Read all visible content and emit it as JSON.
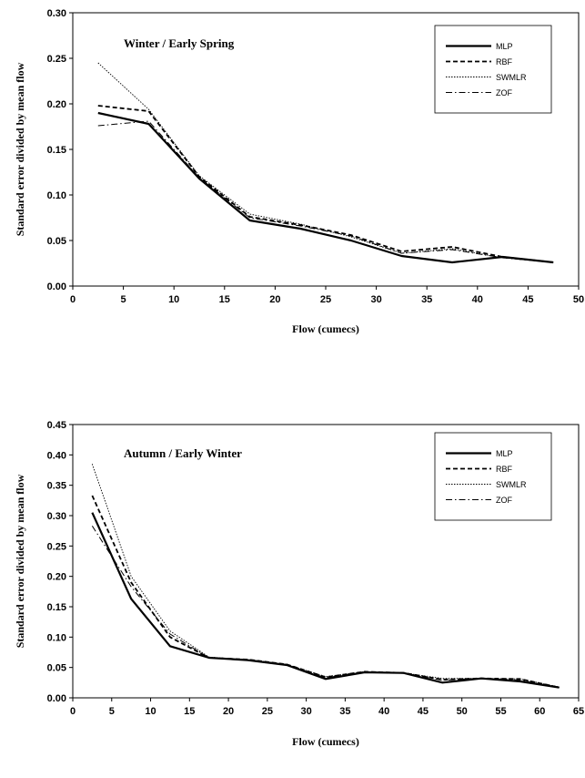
{
  "chart_data": [
    {
      "type": "line",
      "title": "Winter / Early Spring",
      "xlabel": "Flow (cumecs)",
      "ylabel": "Standard error divided by mean flow",
      "xlim": [
        0,
        50
      ],
      "ylim": [
        0,
        0.3
      ],
      "xticks": [
        0,
        5,
        10,
        15,
        20,
        25,
        30,
        35,
        40,
        45,
        50
      ],
      "xtick_labels": [
        "0",
        "5",
        "10",
        "15",
        "20",
        "25",
        "30",
        "35",
        "40",
        "45",
        "50"
      ],
      "yticks": [
        0,
        0.05,
        0.1,
        0.15,
        0.2,
        0.25,
        0.3
      ],
      "ytick_labels": [
        "0.00",
        "0.05",
        "0.10",
        "0.15",
        "0.20",
        "0.25",
        "0.30"
      ],
      "grid": false,
      "legend_position": "top-right",
      "x": [
        2.5,
        7.5,
        12.5,
        17.5,
        22.5,
        27.5,
        32.5,
        37.5,
        42.5,
        47.5
      ],
      "series": [
        {
          "name": "MLP",
          "style": "solid-thick",
          "values": [
            0.19,
            0.178,
            0.118,
            0.072,
            0.063,
            0.05,
            0.033,
            0.026,
            0.032,
            0.026
          ]
        },
        {
          "name": "RBF",
          "style": "dashed",
          "values": [
            0.198,
            0.192,
            0.12,
            0.076,
            0.067,
            0.056,
            0.038,
            0.043,
            0.032,
            0.026
          ]
        },
        {
          "name": "SWMLR",
          "style": "dotted",
          "values": [
            0.245,
            0.194,
            0.121,
            0.079,
            0.068,
            0.054,
            0.036,
            0.041,
            0.031,
            0.026
          ]
        },
        {
          "name": "ZOF",
          "style": "dash-dot",
          "values": [
            0.176,
            0.181,
            0.119,
            0.075,
            0.066,
            0.055,
            0.036,
            0.04,
            0.031,
            0.026
          ]
        }
      ]
    },
    {
      "type": "line",
      "title": "Autumn / Early Winter",
      "xlabel": "Flow (cumecs)",
      "ylabel": "Standard error divided by mean flow",
      "xlim": [
        0,
        65
      ],
      "ylim": [
        0,
        0.45
      ],
      "xticks": [
        0,
        5,
        10,
        15,
        20,
        25,
        30,
        35,
        40,
        45,
        50,
        55,
        60,
        65
      ],
      "xtick_labels": [
        "0",
        "5",
        "10",
        "15",
        "20",
        "25",
        "30",
        "35",
        "40",
        "45",
        "50",
        "55",
        "60",
        "65"
      ],
      "yticks": [
        0,
        0.05,
        0.1,
        0.15,
        0.2,
        0.25,
        0.3,
        0.35,
        0.4,
        0.45
      ],
      "ytick_labels": [
        "0.00",
        "0.05",
        "0.10",
        "0.15",
        "0.20",
        "0.25",
        "0.30",
        "0.35",
        "0.40",
        "0.45"
      ],
      "grid": false,
      "legend_position": "top-right",
      "x": [
        2.5,
        7.5,
        12.5,
        17.5,
        22.5,
        27.5,
        32.5,
        37.5,
        42.5,
        47.5,
        52.5,
        57.5,
        62.5
      ],
      "series": [
        {
          "name": "MLP",
          "style": "solid-thick",
          "values": [
            0.305,
            0.163,
            0.085,
            0.066,
            0.062,
            0.054,
            0.031,
            0.042,
            0.041,
            0.025,
            0.032,
            0.027,
            0.017
          ]
        },
        {
          "name": "RBF",
          "style": "dashed",
          "values": [
            0.333,
            0.19,
            0.1,
            0.066,
            0.063,
            0.055,
            0.034,
            0.043,
            0.041,
            0.03,
            0.032,
            0.031,
            0.017
          ]
        },
        {
          "name": "SWMLR",
          "style": "dotted",
          "values": [
            0.385,
            0.2,
            0.11,
            0.067,
            0.063,
            0.055,
            0.035,
            0.043,
            0.041,
            0.032,
            0.032,
            0.031,
            0.018
          ]
        },
        {
          "name": "ZOF",
          "style": "dash-dot",
          "values": [
            0.283,
            0.183,
            0.105,
            0.066,
            0.063,
            0.055,
            0.033,
            0.043,
            0.041,
            0.029,
            0.032,
            0.029,
            0.017
          ]
        }
      ]
    }
  ]
}
